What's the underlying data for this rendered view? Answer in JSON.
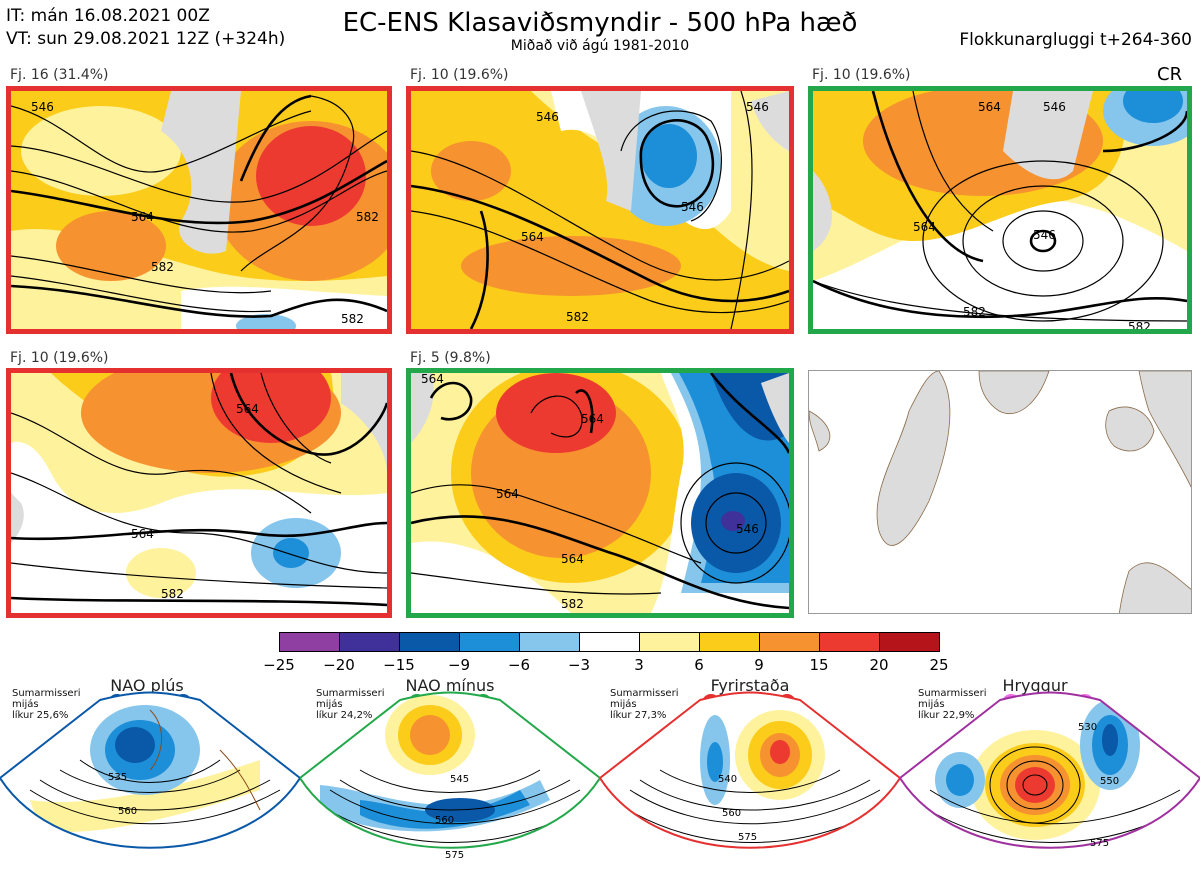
{
  "header": {
    "it_line": "IT: mán 16.08.2021 00Z",
    "vt_line": "VT: sun 29.08.2021 12Z  (+324h)",
    "title": "EC-ENS Klasaviðsmyndir - 500 hPa hæð",
    "subtitle": "Miðað við ágú 1981-2010",
    "window": "Flokkunargluggi t+264-360"
  },
  "cr_label": "CR",
  "panels": [
    {
      "label": "Fj. 16 (31.4%)",
      "frame": "#e53030",
      "contours": [
        "546",
        "564",
        "582",
        "582",
        "582"
      ]
    },
    {
      "label": "Fj. 10 (19.6%)",
      "frame": "#e53030",
      "contours": [
        "546",
        "564",
        "546",
        "582",
        "546"
      ]
    },
    {
      "label": "Fj. 10 (19.6%)",
      "frame": "#22a84a",
      "contours": [
        "564",
        "546",
        "564",
        "546",
        "582",
        "582"
      ]
    },
    {
      "label": "Fj. 10 (19.6%)",
      "frame": "#e53030",
      "contours": [
        "564",
        "564",
        "582"
      ]
    },
    {
      "label": "Fj. 5 (9.8%)",
      "frame": "#22a84a",
      "contours": [
        "564",
        "564",
        "546",
        "564",
        "564",
        "582"
      ]
    }
  ],
  "colorbar": {
    "ticks": [
      "−25",
      "−20",
      "−15",
      "−9",
      "−6",
      "−3",
      "3",
      "6",
      "9",
      "15",
      "20",
      "25"
    ],
    "colors": [
      "#8e3fa1",
      "#40309a",
      "#0a58a8",
      "#1d8fd8",
      "#86c5ec",
      "#ffffff",
      "#fff29c",
      "#fbcc1a",
      "#f6922f",
      "#ed3a31",
      "#b5141b"
    ]
  },
  "regimes": [
    {
      "name": "NAO plús",
      "note_line1": "Sumarmisseri",
      "note_line2": "mijás",
      "note_line3": "líkur 25,6%",
      "color": "#0a58a8",
      "contours": [
        "535",
        "560"
      ]
    },
    {
      "name": "NAO mínus",
      "note_line1": "Sumarmisseri",
      "note_line2": "mijás",
      "note_line3": "líkur 24,2%",
      "color": "#22a84a",
      "contours": [
        "545",
        "560",
        "575"
      ]
    },
    {
      "name": "Fyrirstaða",
      "note_line1": "Sumarmisseri",
      "note_line2": "mijás",
      "note_line3": "líkur 27,3%",
      "color": "#e53030",
      "contours": [
        "540",
        "560",
        "575"
      ]
    },
    {
      "name": "Hryggur",
      "note_line1": "Sumarmisseri",
      "note_line2": "mijás",
      "note_line3": "líkur 22,9%",
      "color": "#ee6fe8",
      "contours": [
        "530",
        "550",
        "575"
      ]
    }
  ]
}
